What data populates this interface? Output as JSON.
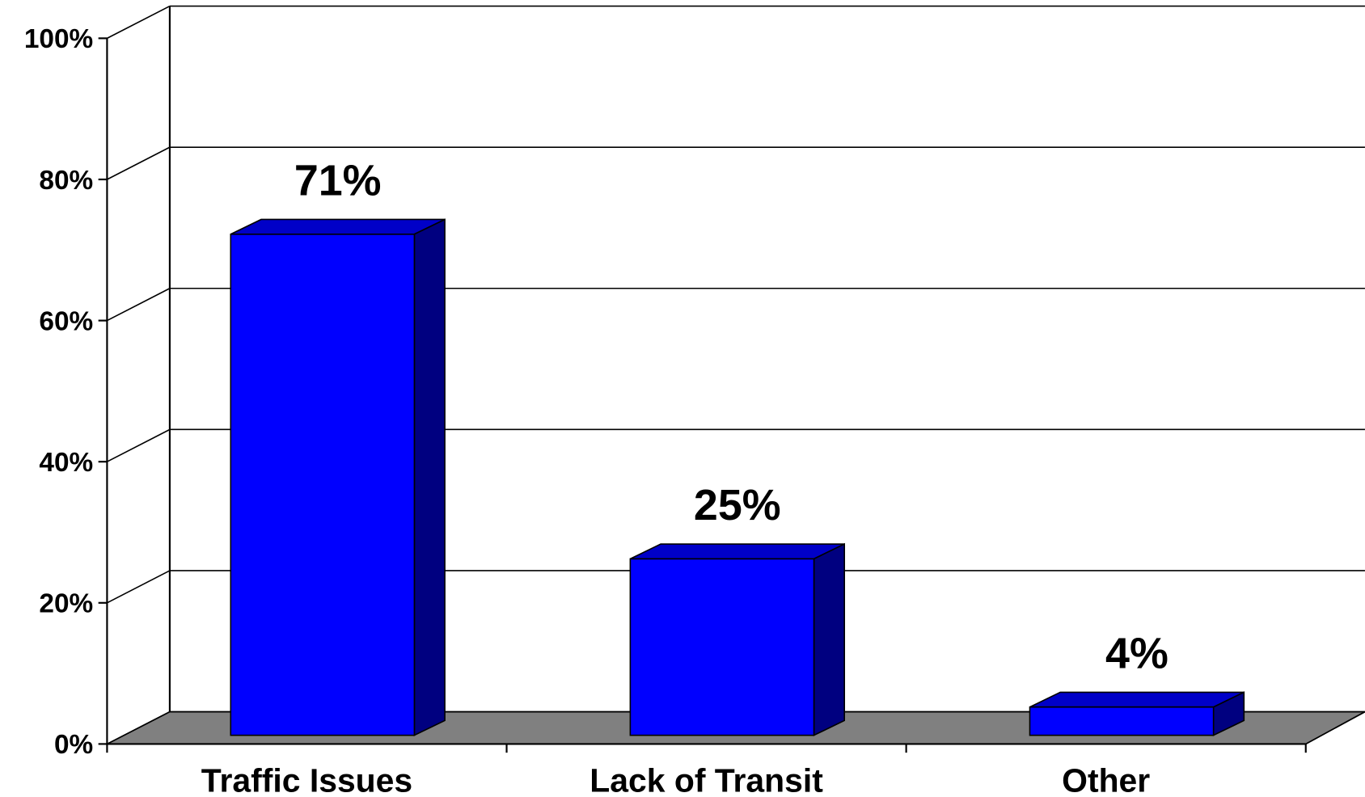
{
  "chart_data": {
    "type": "bar",
    "categories": [
      "Traffic Issues",
      "Lack of Transit",
      "Other"
    ],
    "values": [
      71,
      25,
      4
    ],
    "value_labels": [
      "71%",
      "25%",
      "4%"
    ],
    "color": "#0000ff",
    "ylim": [
      0,
      100
    ],
    "yticks": [
      {
        "value": 0,
        "label": "0%"
      },
      {
        "value": 20,
        "label": "20%"
      },
      {
        "value": 40,
        "label": "40%"
      },
      {
        "value": 60,
        "label": "60%"
      },
      {
        "value": 80,
        "label": "80%"
      },
      {
        "value": 100,
        "label": "100%"
      }
    ],
    "grid": true
  }
}
